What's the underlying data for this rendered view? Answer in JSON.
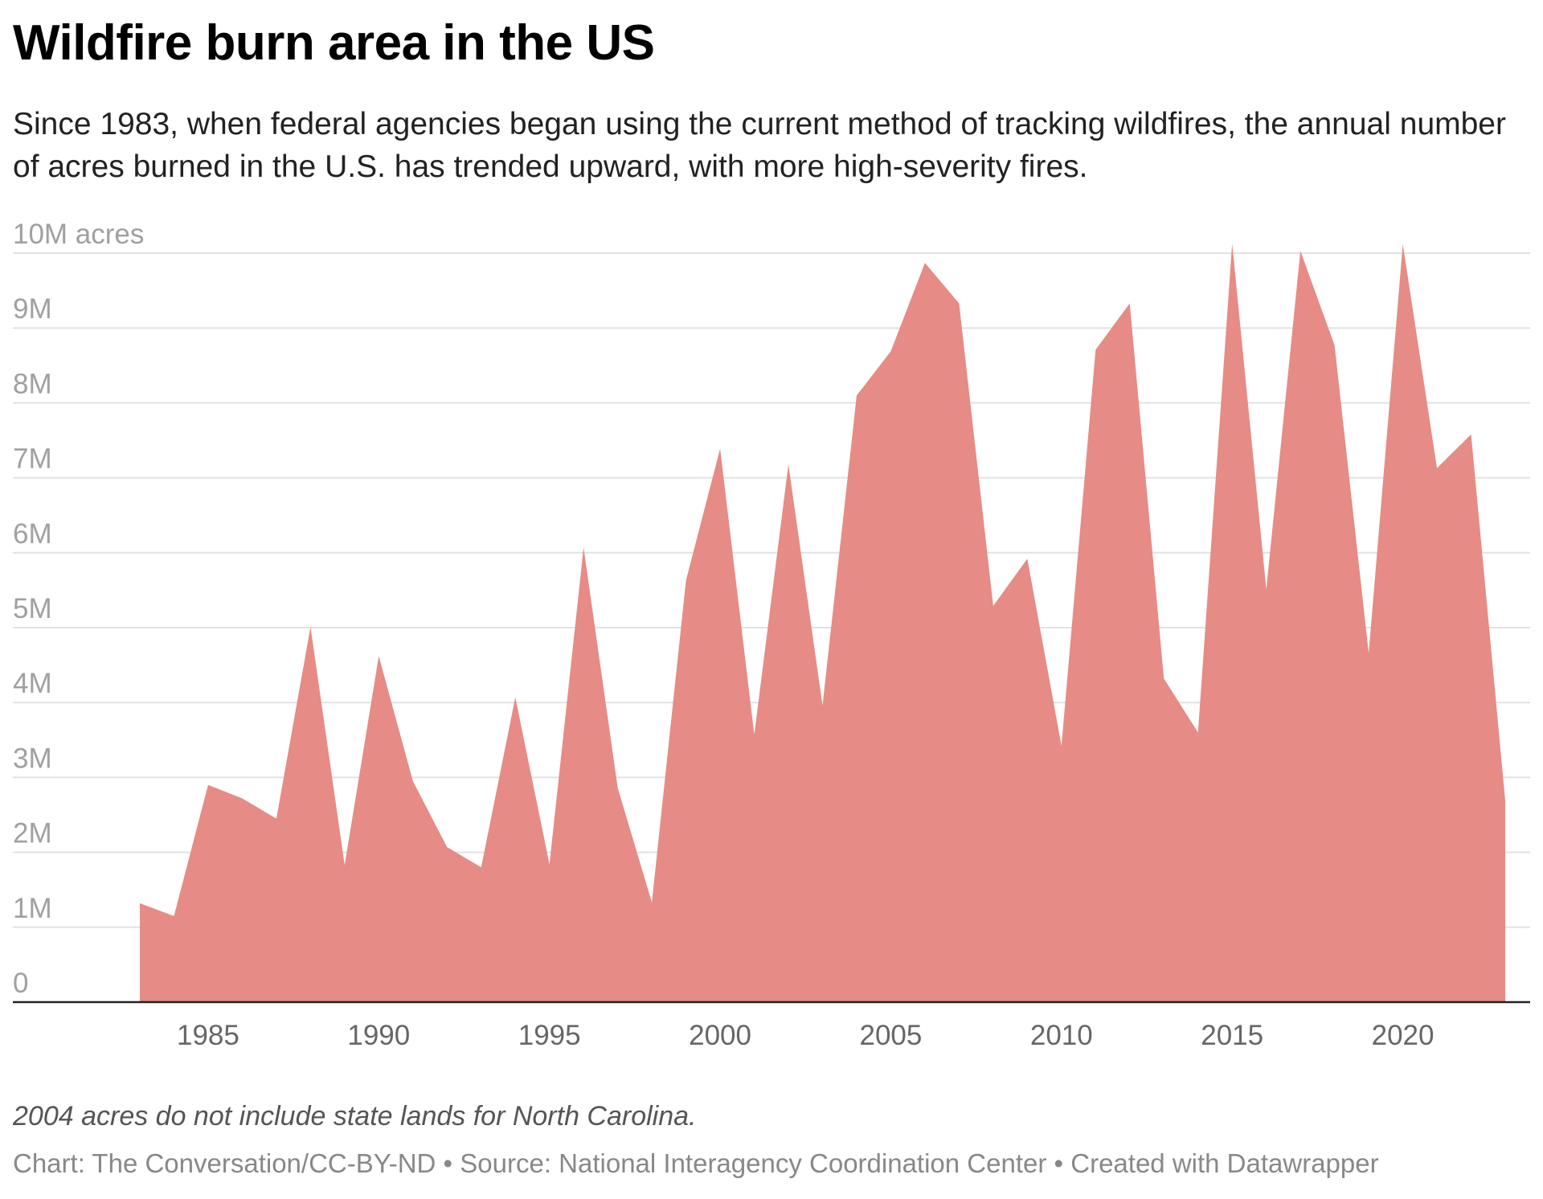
{
  "title": "Wildfire burn area in the US",
  "subtitle": "Since 1983, when federal agencies began using the current method of tracking wildfires, the annual number of acres burned in the U.S. has trended upward, with more high-severity fires.",
  "note": "2004 acres do not include state lands for North Carolina.",
  "credits": "Chart: The Conversation/CC-BY-ND • Source: National Interagency Coordination Center • Created with Datawrapper",
  "chart_data": {
    "type": "area",
    "title": "Wildfire burn area in the US",
    "xlabel": "",
    "ylabel": "",
    "ylim": [
      0,
      10
    ],
    "grid": true,
    "color": "#e68b85",
    "y_ticks": [
      {
        "value": 0,
        "label": "0"
      },
      {
        "value": 1,
        "label": "1M"
      },
      {
        "value": 2,
        "label": "2M"
      },
      {
        "value": 3,
        "label": "3M"
      },
      {
        "value": 4,
        "label": "4M"
      },
      {
        "value": 5,
        "label": "5M"
      },
      {
        "value": 6,
        "label": "6M"
      },
      {
        "value": 7,
        "label": "7M"
      },
      {
        "value": 8,
        "label": "8M"
      },
      {
        "value": 9,
        "label": "9M"
      },
      {
        "value": 10,
        "label": "10M acres"
      }
    ],
    "x_ticks": [
      1985,
      1990,
      1995,
      2000,
      2005,
      2010,
      2015,
      2020
    ],
    "x": [
      1983,
      1984,
      1985,
      1986,
      1987,
      1988,
      1989,
      1990,
      1991,
      1992,
      1993,
      1994,
      1995,
      1996,
      1997,
      1998,
      1999,
      2000,
      2001,
      2002,
      2003,
      2004,
      2005,
      2006,
      2007,
      2008,
      2009,
      2010,
      2011,
      2012,
      2013,
      2014,
      2015,
      2016,
      2017,
      2018,
      2019,
      2020,
      2021,
      2022,
      2023
    ],
    "values": [
      1.32,
      1.15,
      2.9,
      2.72,
      2.45,
      5.01,
      1.83,
      4.62,
      2.95,
      2.07,
      1.8,
      4.07,
      1.84,
      6.07,
      2.86,
      1.33,
      5.63,
      7.39,
      3.57,
      7.18,
      3.96,
      8.1,
      8.69,
      9.87,
      9.33,
      5.29,
      5.92,
      3.42,
      8.71,
      9.33,
      4.32,
      3.6,
      10.13,
      5.51,
      10.03,
      8.77,
      4.66,
      10.12,
      7.13,
      7.58,
      2.69
    ]
  }
}
